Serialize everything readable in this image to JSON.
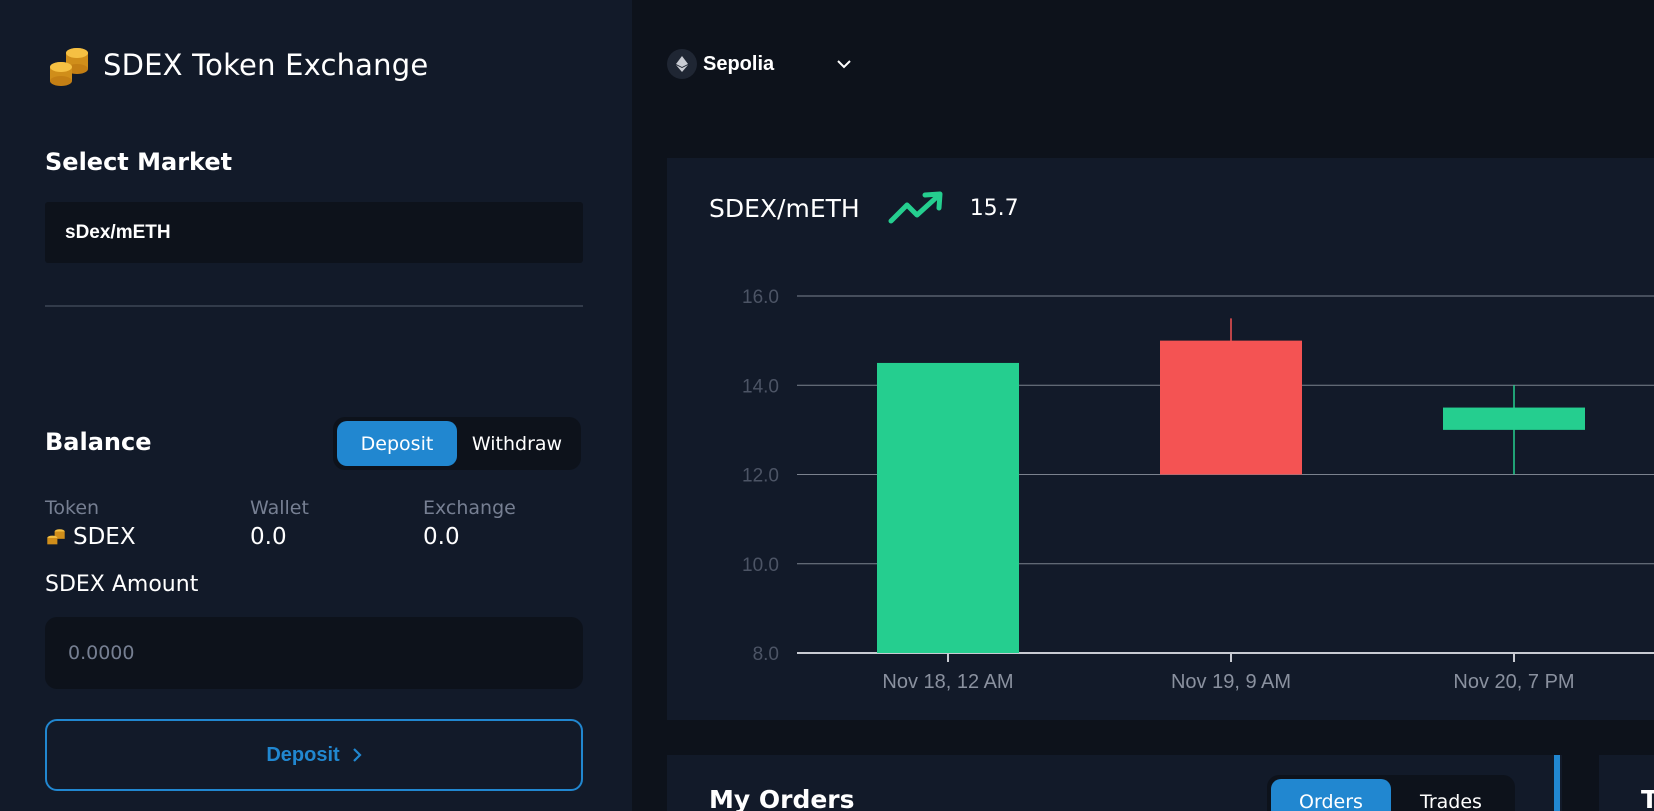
{
  "app": {
    "title": "SDEX Token Exchange"
  },
  "network": {
    "name": "Sepolia"
  },
  "markets": {
    "title": "Select Market",
    "selected": "sDex/mETH"
  },
  "balance": {
    "title": "Balance",
    "tabs": [
      "Deposit",
      "Withdraw"
    ],
    "active_tab": "Deposit",
    "columns": [
      "Token",
      "Wallet",
      "Exchange"
    ],
    "token": "SDEX",
    "wallet": "0.0",
    "exchange": "0.0",
    "amount_label": "SDEX Amount",
    "amount_placeholder": "0.0000",
    "submit_label": "Deposit"
  },
  "chart": {
    "pair": "SDEX/mETH",
    "price": "15.7",
    "trend": "up",
    "colors": {
      "up": "#25ce8f",
      "down": "#f45353",
      "accent": "#2187d0"
    }
  },
  "chart_data": {
    "type": "candlestick",
    "categories": [
      "Nov 18, 12 AM",
      "Nov 19, 9 AM",
      "Nov 20, 7 PM"
    ],
    "candles": [
      {
        "open": 8.0,
        "high": 14.5,
        "low": 8.0,
        "close": 14.5,
        "dir": "up"
      },
      {
        "open": 15.0,
        "high": 15.5,
        "low": 12.0,
        "close": 12.0,
        "dir": "down"
      },
      {
        "open": 13.0,
        "high": 14.0,
        "low": 12.0,
        "close": 13.5,
        "dir": "up"
      }
    ],
    "yticks": [
      "16.0",
      "14.0",
      "12.0",
      "10.0",
      "8.0"
    ],
    "xticks": [
      "Nov 18, 12 AM",
      "Nov 19, 9 AM",
      "Nov 20, 7 PM"
    ],
    "ylim": [
      8,
      16
    ],
    "grid": true
  },
  "orders": {
    "title": "My Orders",
    "tabs": [
      "Orders",
      "Trades"
    ],
    "active_tab": "Orders"
  },
  "trades": {
    "title": "T"
  }
}
